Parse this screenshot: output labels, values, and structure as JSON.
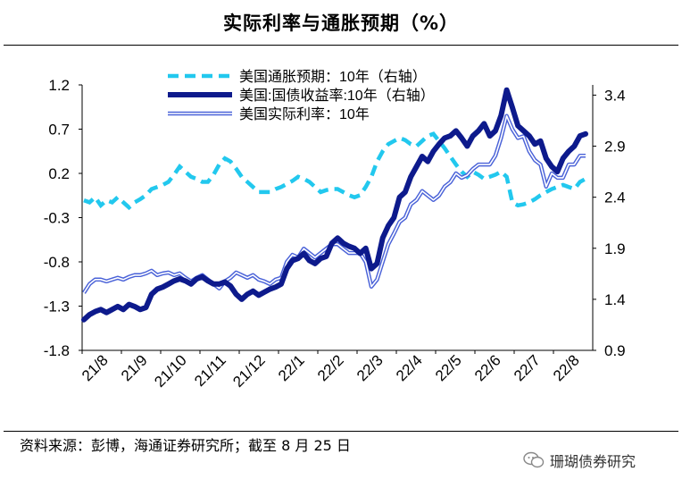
{
  "title": "实际利率与通胀预期（%）",
  "source": "资料来源：彭博，海通证券研究所；截至 8 月 25 日",
  "watermark": "珊瑚债券研究",
  "chart_data": {
    "type": "line",
    "x_tick_labels": [
      "21/8",
      "21/9",
      "21/10",
      "21/11",
      "21/12",
      "22/1",
      "22/2",
      "22/3",
      "22/4",
      "22/5",
      "22/6",
      "22/7",
      "22/8"
    ],
    "left_axis": {
      "range": [
        -1.8,
        1.2
      ],
      "ticks": [
        "1.2",
        "0.7",
        "0.2",
        "-0.3",
        "-0.8",
        "-1.3",
        "-1.8"
      ]
    },
    "right_axis": {
      "range": [
        0.9,
        3.5
      ],
      "ticks": [
        "3.4",
        "2.9",
        "2.4",
        "1.9",
        "1.4",
        "0.9"
      ]
    },
    "legend": [
      "美国通胀预期：10年（右轴）",
      "美国:国债收益率:10年（右轴）",
      "美国实际利率：10年"
    ],
    "series": [
      {
        "name": "美国通胀预期：10年（右轴）",
        "axis": "right",
        "color": "#22c8ee",
        "style": "dashed",
        "values": [
          2.37,
          2.35,
          2.4,
          2.32,
          2.37,
          2.35,
          2.4,
          2.35,
          2.3,
          2.35,
          2.38,
          2.42,
          2.48,
          2.5,
          2.52,
          2.55,
          2.62,
          2.7,
          2.65,
          2.6,
          2.58,
          2.55,
          2.55,
          2.62,
          2.72,
          2.78,
          2.75,
          2.68,
          2.6,
          2.55,
          2.5,
          2.45,
          2.45,
          2.45,
          2.48,
          2.5,
          2.53,
          2.56,
          2.6,
          2.58,
          2.55,
          2.5,
          2.45,
          2.47,
          2.48,
          2.48,
          2.45,
          2.42,
          2.4,
          2.42,
          2.5,
          2.6,
          2.75,
          2.85,
          2.92,
          2.95,
          2.98,
          2.96,
          2.92,
          2.9,
          2.95,
          3.0,
          3.02,
          2.95,
          2.88,
          2.8,
          2.72,
          2.65,
          2.6,
          2.65,
          2.62,
          2.58,
          2.6,
          2.62,
          2.65,
          2.6,
          2.35,
          2.32,
          2.33,
          2.35,
          2.38,
          2.42,
          2.45,
          2.48,
          2.5,
          2.52,
          2.5,
          2.48,
          2.55,
          2.58
        ]
      },
      {
        "name": "美国:国债收益率:10年（右轴）",
        "axis": "right",
        "color": "#0d1a8c",
        "style": "solid-thick",
        "values": [
          1.2,
          1.25,
          1.28,
          1.3,
          1.27,
          1.3,
          1.33,
          1.3,
          1.35,
          1.33,
          1.3,
          1.32,
          1.45,
          1.5,
          1.52,
          1.55,
          1.58,
          1.6,
          1.58,
          1.55,
          1.6,
          1.62,
          1.58,
          1.55,
          1.55,
          1.57,
          1.53,
          1.45,
          1.4,
          1.45,
          1.48,
          1.44,
          1.47,
          1.5,
          1.52,
          1.55,
          1.7,
          1.78,
          1.8,
          1.85,
          1.78,
          1.75,
          1.8,
          1.82,
          1.95,
          2.0,
          1.95,
          1.92,
          1.9,
          1.85,
          1.9,
          1.7,
          1.75,
          2.0,
          2.12,
          2.2,
          2.4,
          2.45,
          2.6,
          2.7,
          2.8,
          2.75,
          2.85,
          2.92,
          2.98,
          3.0,
          3.05,
          2.98,
          2.9,
          3.0,
          3.05,
          3.12,
          3.0,
          3.05,
          3.2,
          3.45,
          3.28,
          3.1,
          3.05,
          3.0,
          2.92,
          2.95,
          2.78,
          2.7,
          2.65,
          2.78,
          2.85,
          2.9,
          3.0,
          3.02
        ]
      },
      {
        "name": "美国实际利率：10年",
        "axis": "left",
        "color": "#4a62d8",
        "style": "double",
        "values": [
          -1.15,
          -1.05,
          -1.0,
          -1.0,
          -1.02,
          -1.0,
          -0.98,
          -1.0,
          -0.97,
          -0.95,
          -0.95,
          -0.93,
          -0.9,
          -0.95,
          -0.93,
          -0.92,
          -0.95,
          -0.93,
          -0.98,
          -1.02,
          -0.98,
          -0.95,
          -1.0,
          -1.05,
          -1.1,
          -1.02,
          -0.98,
          -0.92,
          -0.95,
          -0.98,
          -0.95,
          -1.0,
          -1.02,
          -1.05,
          -1.0,
          -0.98,
          -0.8,
          -0.72,
          -0.75,
          -0.65,
          -0.7,
          -0.75,
          -0.7,
          -0.65,
          -0.6,
          -0.6,
          -0.65,
          -0.7,
          -0.7,
          -0.7,
          -0.8,
          -1.08,
          -1.0,
          -0.8,
          -0.6,
          -0.48,
          -0.35,
          -0.3,
          -0.15,
          -0.1,
          0.0,
          -0.05,
          -0.1,
          -0.05,
          0.05,
          0.1,
          0.2,
          0.15,
          0.18,
          0.25,
          0.3,
          0.3,
          0.3,
          0.4,
          0.6,
          0.85,
          0.7,
          0.6,
          0.62,
          0.45,
          0.35,
          0.3,
          0.05,
          0.2,
          0.15,
          0.15,
          0.3,
          0.3,
          0.4,
          0.4
        ]
      }
    ]
  }
}
